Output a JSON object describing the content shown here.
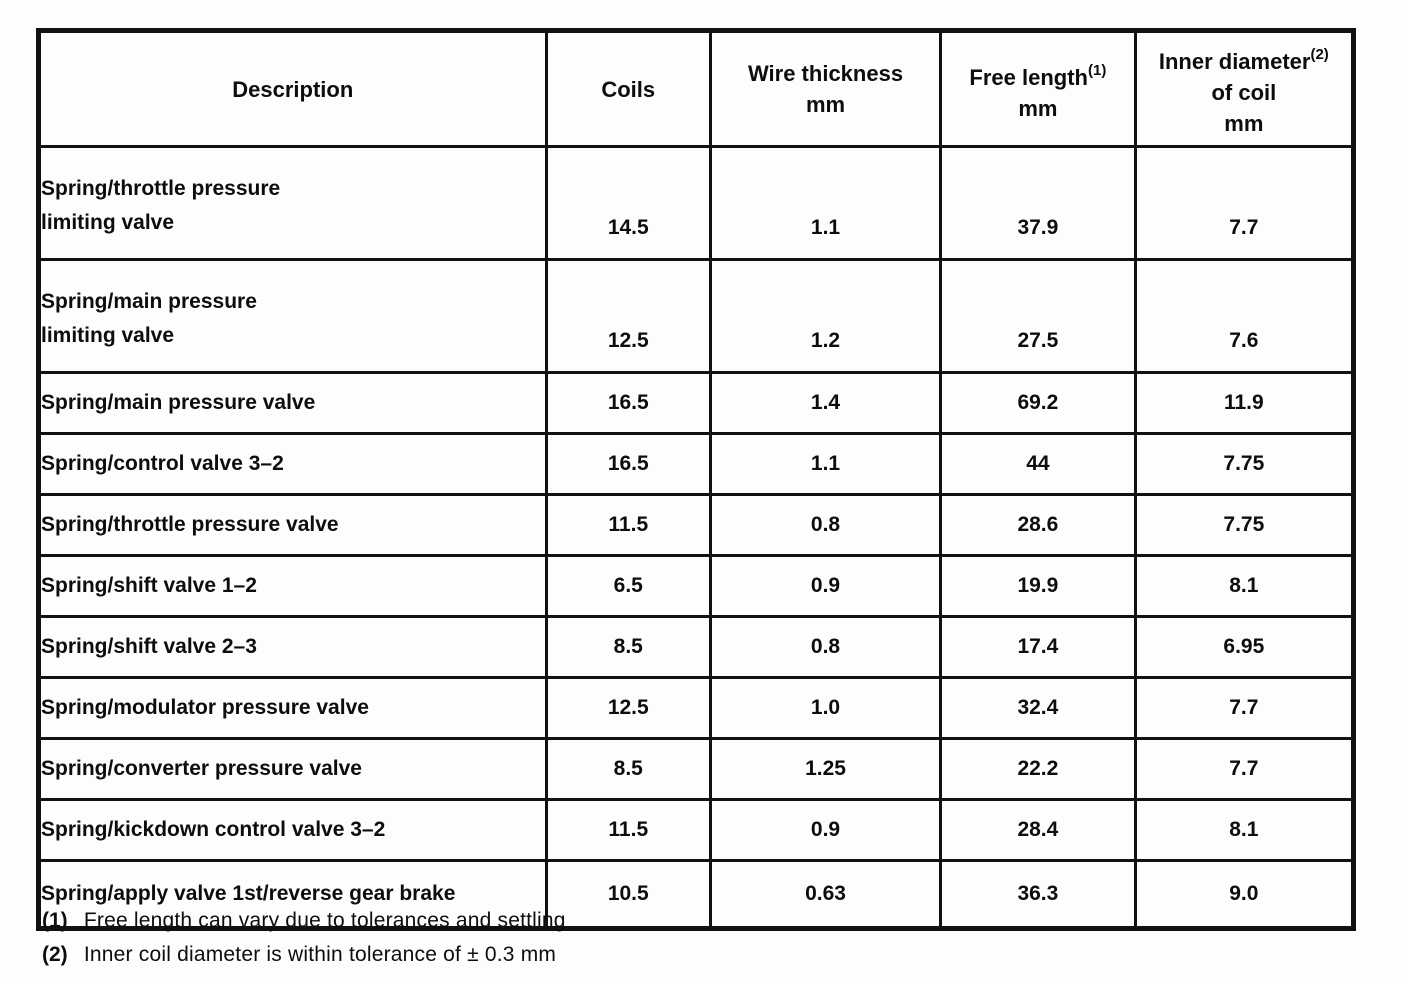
{
  "table": {
    "columns": [
      {
        "lines": [
          "Description"
        ],
        "sup": "",
        "key": "description",
        "class": "col-desc"
      },
      {
        "lines": [
          "Coils"
        ],
        "sup": "",
        "key": "coils",
        "class": "col-coils"
      },
      {
        "lines": [
          "Wire thickness",
          "mm"
        ],
        "sup": "",
        "key": "wire_thickness",
        "class": "col-wire"
      },
      {
        "lines": [
          "Free length",
          "mm"
        ],
        "sup": "(1)",
        "key": "free_length",
        "class": "col-free"
      },
      {
        "lines": [
          "Inner diameter",
          "of coil",
          "mm"
        ],
        "sup": "(2)",
        "key": "inner_diameter",
        "class": "col-inner"
      }
    ],
    "rows": [
      {
        "description": [
          "Spring/throttle pressure",
          "limiting valve"
        ],
        "coils": "14.5",
        "wire_thickness": "1.1",
        "free_length": "37.9",
        "inner_diameter": "7.7"
      },
      {
        "description": [
          "Spring/main pressure",
          "limiting valve"
        ],
        "coils": "12.5",
        "wire_thickness": "1.2",
        "free_length": "27.5",
        "inner_diameter": "7.6"
      },
      {
        "description": [
          "Spring/main pressure valve"
        ],
        "coils": "16.5",
        "wire_thickness": "1.4",
        "free_length": "69.2",
        "inner_diameter": "11.9"
      },
      {
        "description": [
          "Spring/control valve 3–2"
        ],
        "coils": "16.5",
        "wire_thickness": "1.1",
        "free_length": "44",
        "inner_diameter": "7.75"
      },
      {
        "description": [
          "Spring/throttle pressure valve"
        ],
        "coils": "11.5",
        "wire_thickness": "0.8",
        "free_length": "28.6",
        "inner_diameter": "7.75"
      },
      {
        "description": [
          "Spring/shift valve 1–2"
        ],
        "coils": "6.5",
        "wire_thickness": "0.9",
        "free_length": "19.9",
        "inner_diameter": "8.1"
      },
      {
        "description": [
          "Spring/shift valve 2–3"
        ],
        "coils": "8.5",
        "wire_thickness": "0.8",
        "free_length": "17.4",
        "inner_diameter": "6.95"
      },
      {
        "description": [
          "Spring/modulator pressure valve"
        ],
        "coils": "12.5",
        "wire_thickness": "1.0",
        "free_length": "32.4",
        "inner_diameter": "7.7"
      },
      {
        "description": [
          "Spring/converter pressure valve"
        ],
        "coils": "8.5",
        "wire_thickness": "1.25",
        "free_length": "22.2",
        "inner_diameter": "7.7"
      },
      {
        "description": [
          "Spring/kickdown control valve 3–2"
        ],
        "coils": "11.5",
        "wire_thickness": "0.9",
        "free_length": "28.4",
        "inner_diameter": "8.1"
      },
      {
        "description": [
          "Spring/apply valve 1st/reverse gear brake"
        ],
        "coils": "10.5",
        "wire_thickness": "0.63",
        "free_length": "36.3",
        "inner_diameter": "9.0"
      }
    ]
  },
  "footnotes": [
    {
      "marker": "(1)",
      "text": "Free length can vary due to tolerances and settling"
    },
    {
      "marker": "(2)",
      "text": "Inner coil diameter is within tolerance of ± 0.3 mm"
    }
  ]
}
